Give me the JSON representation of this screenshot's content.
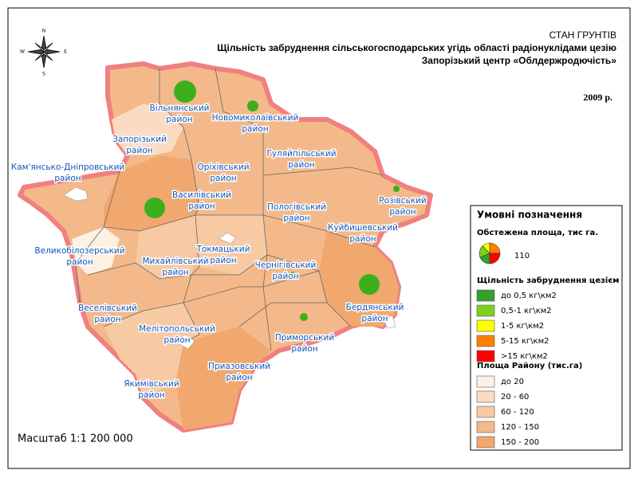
{
  "header": {
    "title": "СТАН ГРУНТІВ",
    "subtitle": "Щільність забруднення сільськогосподарських угідь області радіонуклідами цезію",
    "organization": "Запорізький центр «Облдержродючість»",
    "year": "2009 р."
  },
  "compass": [
    "N",
    "S",
    "W",
    "E"
  ],
  "scale": "Масштаб 1:1 200 000",
  "districts": [
    [
      "Вільнянський",
      "район"
    ],
    [
      "Новомиколаївський",
      "район"
    ],
    [
      "Запорізький",
      "район"
    ],
    [
      "Кам'янсько-Дніпровський",
      "район"
    ],
    [
      "Оріхівський",
      "район"
    ],
    [
      "Гуляйпільський",
      "район"
    ],
    [
      "Василівський",
      "район"
    ],
    [
      "Розівський",
      "район"
    ],
    [
      "Пологівський",
      "район"
    ],
    [
      "Куйбишевський",
      "район"
    ],
    [
      "Великобілозерський",
      "район"
    ],
    [
      "Михайлівський",
      "район"
    ],
    [
      "Токмацький",
      "район"
    ],
    [
      "Чернігівський",
      "район"
    ],
    [
      "Бердянський",
      "район"
    ],
    [
      "Веселівський",
      "район"
    ],
    [
      "Мелітопольський",
      "район"
    ],
    [
      "Приморський",
      "район"
    ],
    [
      "Приазовський",
      "район"
    ],
    [
      "Якимівський",
      "район"
    ]
  ],
  "legend": {
    "title": "Умовні позначення",
    "surveyed_title": "Обстежена площа, тис га.",
    "surveyed_example": "110",
    "density_title": "Щільність забруднення цезієм",
    "density_items": [
      {
        "label": "до 0,5 кг\\км2",
        "color": "#33a02c"
      },
      {
        "label": "0,5-1 кг\\км2",
        "color": "#7fd11b"
      },
      {
        "label": "1-5 кг\\км2",
        "color": "#ffff00"
      },
      {
        "label": "5-15 кг\\км2",
        "color": "#ff8000"
      },
      {
        "label": ">15 кг\\км2",
        "color": "#ff0000"
      }
    ],
    "area_title": "Площа Району (тис.га)",
    "area_items": [
      {
        "label": "до 20",
        "color": "#fdf1e3"
      },
      {
        "label": "20 - 60",
        "color": "#fbdcc2"
      },
      {
        "label": "60 - 120",
        "color": "#f8caa4"
      },
      {
        "label": "120 - 150",
        "color": "#f4b98a"
      },
      {
        "label": "150 - 200",
        "color": "#f1a86f"
      }
    ]
  }
}
